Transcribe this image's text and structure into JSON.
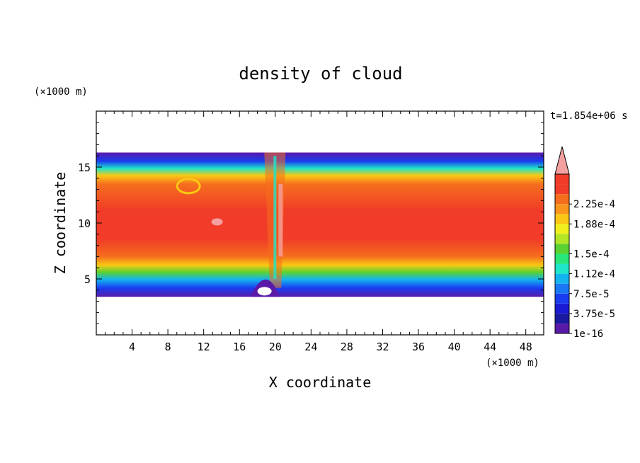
{
  "chart_data": {
    "type": "heatmap",
    "title": "density of cloud",
    "xlabel": "X coordinate",
    "ylabel": "Z coordinate",
    "x_unit": "(×1000 m)",
    "y_unit": "(×1000 m)",
    "time_label": "t=1.854e+06 s",
    "xlim": [
      0,
      50
    ],
    "ylim": [
      0,
      20
    ],
    "x_ticks": [
      4,
      8,
      12,
      16,
      20,
      24,
      28,
      32,
      36,
      40,
      44,
      48
    ],
    "y_ticks": [
      5,
      10,
      15
    ],
    "colorbar": {
      "levels": [
        {
          "label": "1e-16",
          "color": "#5a1aa8"
        },
        {
          "label": "",
          "color": "#1a1aa0"
        },
        {
          "label": "3.75e-5",
          "color": "#1a1ad2"
        },
        {
          "label": "",
          "color": "#1a3cf0"
        },
        {
          "label": "7.5e-5",
          "color": "#1a78f5"
        },
        {
          "label": "",
          "color": "#14b4f0"
        },
        {
          "label": "1.12e-4",
          "color": "#1ee6c8"
        },
        {
          "label": "",
          "color": "#28e678"
        },
        {
          "label": "1.5e-4",
          "color": "#5ad232"
        },
        {
          "label": "",
          "color": "#b4e628"
        },
        {
          "label": "",
          "color": "#f0f01e"
        },
        {
          "label": "1.88e-4",
          "color": "#fac814"
        },
        {
          "label": "",
          "color": "#fa961e"
        },
        {
          "label": "2.25e-4",
          "color": "#f56e1e"
        },
        {
          "label": "",
          "color": "#f03c28"
        },
        {
          "label": "",
          "color": "#f03c28"
        }
      ],
      "over_color": "#f4a0a0"
    },
    "field": {
      "cloud_base_z": 3.4,
      "cloud_top_z": 16.3,
      "core_z_range": [
        6.5,
        14.5
      ],
      "updraft_x": 20.2,
      "vortex_center": [
        10.3,
        13.3
      ]
    }
  }
}
